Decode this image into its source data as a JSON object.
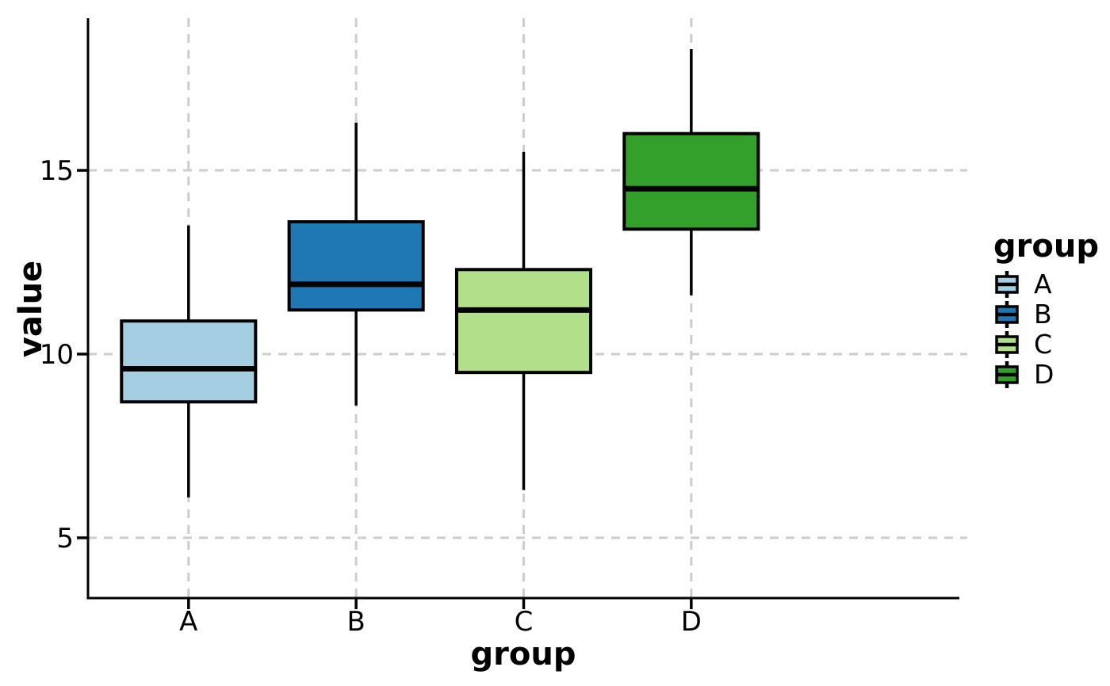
{
  "chart_data": {
    "type": "boxplot",
    "title": "",
    "xlabel": "group",
    "ylabel": "value",
    "categories": [
      "A",
      "B",
      "C",
      "D"
    ],
    "series": [
      {
        "name": "A",
        "color": "#A6CEE3",
        "whisker_low": 6.1,
        "q1": 8.7,
        "median": 9.6,
        "q3": 10.9,
        "whisker_high": 13.5
      },
      {
        "name": "B",
        "color": "#1F78B4",
        "whisker_low": 8.6,
        "q1": 11.2,
        "median": 11.9,
        "q3": 13.6,
        "whisker_high": 16.3
      },
      {
        "name": "C",
        "color": "#B2DF8A",
        "whisker_low": 6.3,
        "q1": 9.5,
        "median": 11.2,
        "q3": 12.3,
        "whisker_high": 15.5
      },
      {
        "name": "D",
        "color": "#33A02C",
        "whisker_low": 11.6,
        "q1": 13.4,
        "median": 14.5,
        "q3": 16.0,
        "whisker_high": 18.3
      }
    ],
    "yticks": [
      5,
      10,
      15
    ],
    "ylim": [
      3.36,
      19.14
    ],
    "grid": {
      "horizontal": true,
      "vertical": true,
      "style": "dashed",
      "color": "#cdcdcd"
    },
    "axis_color": "#000000",
    "box_outline_color": "#000000",
    "legend": {
      "title": "group",
      "position": "right",
      "entries": [
        {
          "label": "A",
          "color": "#A6CEE3"
        },
        {
          "label": "B",
          "color": "#1F78B4"
        },
        {
          "label": "C",
          "color": "#B2DF8A"
        },
        {
          "label": "D",
          "color": "#33A02C"
        }
      ]
    }
  }
}
